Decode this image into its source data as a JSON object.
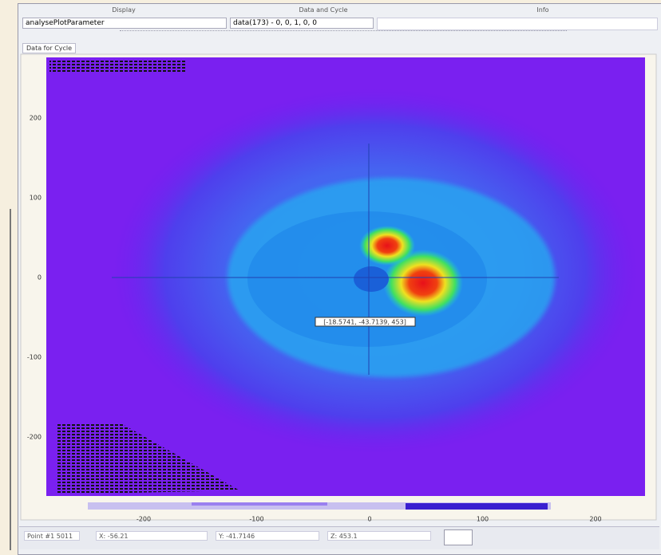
{
  "header": {
    "columns": [
      "Display",
      "Data and Cycle",
      "Info"
    ],
    "display_field": "analysePlotParameter",
    "data_field": "data(173) - 0, 0, 1, 0, 0"
  },
  "tab": "Data for Cycle",
  "plot": {
    "yticks": [
      200,
      100,
      0,
      -100,
      -200
    ],
    "xticks": [
      -200,
      -100,
      0,
      100,
      200
    ],
    "cursor_label": "[-18.5741, -43.7139, 453]"
  },
  "status": {
    "point": "Point #1 5011",
    "x": "X: -56.21",
    "y": "Y: -41.7146",
    "z": "Z: 453.1"
  }
}
